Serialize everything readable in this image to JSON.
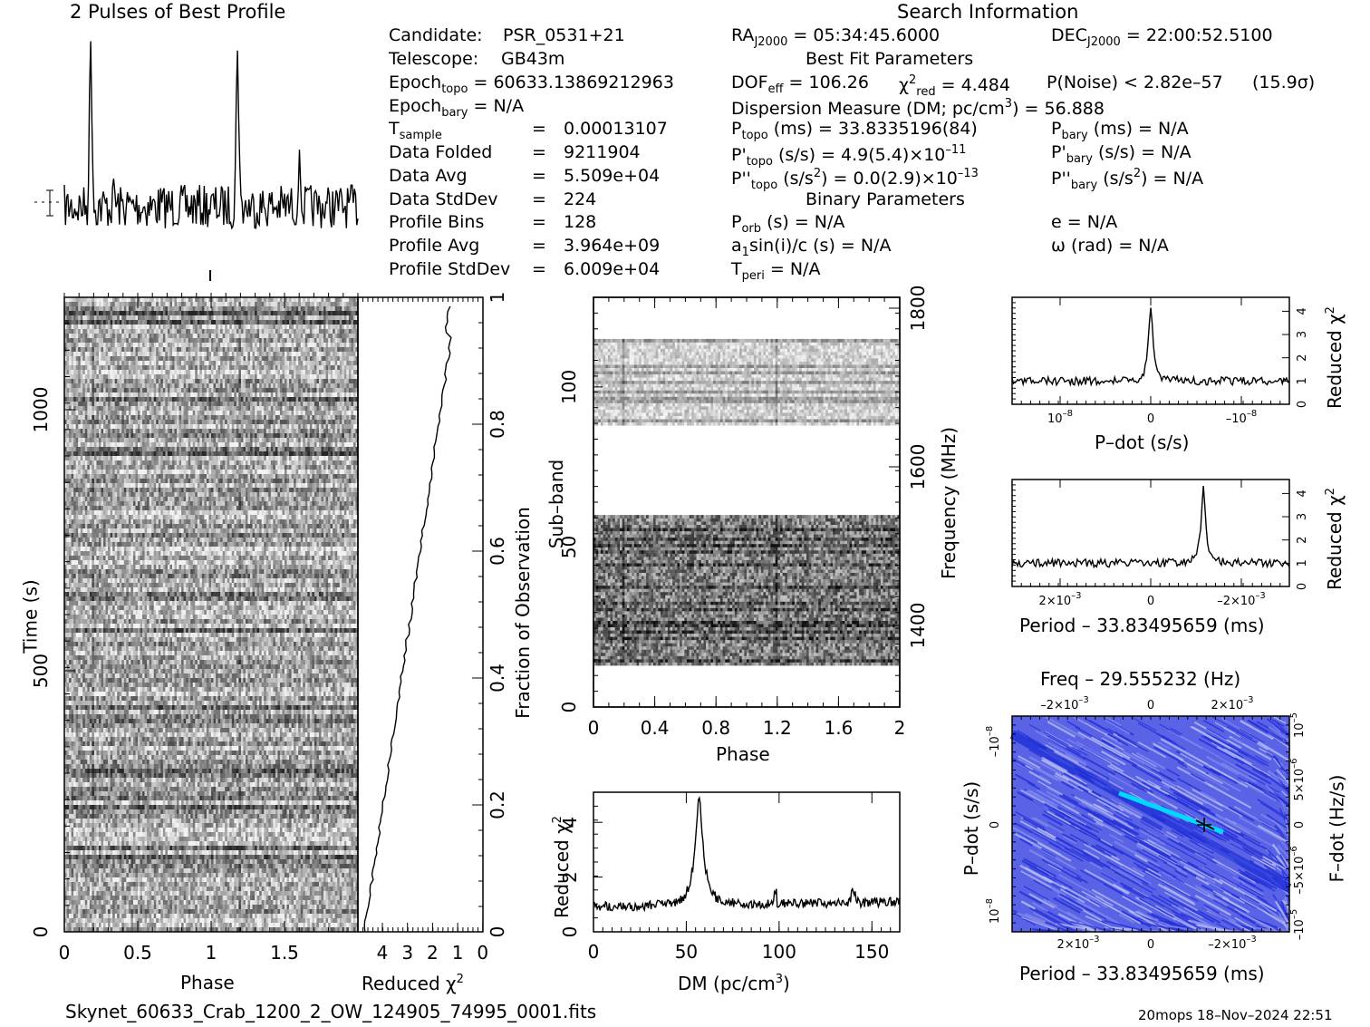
{
  "header": {
    "profile_title": "2 Pulses of Best Profile",
    "search_title": "Search Information",
    "footer_file": "Skynet_60633_Crab_1200_2_OW_124905_74995_0001.fits",
    "footer_stamp": "20mops 18–Nov–2024 22:51"
  },
  "info_left": [
    {
      "label": "Candidate:",
      "value": "PSR_0531+21"
    },
    {
      "label": "Telescope:",
      "value": "GB43m"
    },
    {
      "label": "Epoch",
      "sub": "topo",
      "value": "= 60633.13869212963"
    },
    {
      "label": "Epoch",
      "sub": "bary",
      "value": "= N/A"
    },
    {
      "label": "T",
      "sub": "sample",
      "value": "0.00013107"
    },
    {
      "label": "Data Folded",
      "value": "9211904"
    },
    {
      "label": "Data Avg",
      "value": "5.509e+04"
    },
    {
      "label": "Data StdDev",
      "value": "224"
    },
    {
      "label": "Profile Bins",
      "value": "128"
    },
    {
      "label": "Profile Avg",
      "value": "3.964e+09"
    },
    {
      "label": "Profile StdDev",
      "value": "6.009e+04"
    }
  ],
  "info_mid": {
    "ra": "= 05:34:45.6000",
    "dec": "= 22:00:52.5100",
    "best_fit_title": "Best Fit Parameters",
    "dof": "= 106.26",
    "chi2red": "= 4.484",
    "pnoise": "P(Noise) < 2.82e–57",
    "sigma": "(15.9σ)",
    "dm": "Dispersion Measure (DM; pc/cm",
    "dm_value": ") = 56.888",
    "ptopo": "(ms) =  33.8335196(84)",
    "pbary": "(ms) = N/A",
    "pdtopo": "(s/s) =  4.9(5.4)×10",
    "pdtopo_exp": "–11",
    "pdbary": "(s/s) = N/A",
    "pddtopo": ") = 0.0(2.9)×10",
    "pddtopo_exp": "–13",
    "pddbary": ") = N/A",
    "binary_title": "Binary Parameters",
    "porb": "(s) = N/A",
    "e": "e = N/A",
    "a1": "a",
    "a1_rest": "sin(i)/c (s) = N/A",
    "omega": "ω (rad) = N/A",
    "tperi": "= N/A"
  },
  "axes": {
    "phase": "Phase",
    "time": "Time (s)",
    "reduced_chi2": "Reduced χ",
    "fraction": "Fraction of Observation",
    "subband": "Sub–band",
    "frequency": "Frequency (MHz)",
    "dm": "DM (pc/cm",
    "pdot": "P–dot (s/s)",
    "period": "Period – 33.83495659 (ms)",
    "freq_title": "Freq – 29.555232 (Hz)",
    "fdot": "F–dot (Hz/s)"
  },
  "chart_data": [
    {
      "type": "line",
      "name": "profile",
      "xlim": [
        0,
        2
      ],
      "peaks_phase": [
        0.18,
        1.18
      ],
      "baseline": 0,
      "peak_height": 1
    },
    {
      "type": "heatmap",
      "name": "time-phase",
      "xlim": [
        0,
        2
      ],
      "ylim": [
        0,
        1200
      ],
      "xticks": [
        "0",
        "0.5",
        "1",
        "1.5"
      ],
      "yticks": [
        "0",
        "500",
        "1000"
      ],
      "right_ticks": [
        "0",
        "0.2",
        "0.4",
        "0.6",
        "0.8",
        "1"
      ]
    },
    {
      "type": "line",
      "name": "chi2-vs-time",
      "xlim": [
        4.5,
        0
      ],
      "xticks": [
        "4",
        "3",
        "2",
        "1",
        "0"
      ]
    },
    {
      "type": "heatmap",
      "name": "subband-phase",
      "xlim": [
        0,
        2
      ],
      "ylim": [
        0,
        128
      ],
      "xticks": [
        "0",
        "0.4",
        "0.8",
        "1.2",
        "1.6",
        "2"
      ],
      "yticks": [
        "0",
        "50",
        "100"
      ],
      "freq_ticks": [
        "1400",
        "1600",
        "1800"
      ],
      "bands": [
        [
          13,
          60
        ],
        [
          88,
          115
        ]
      ]
    },
    {
      "type": "line",
      "name": "chi2-vs-dm",
      "xlim": [
        0,
        165
      ],
      "ylim": [
        0,
        5.1
      ],
      "xticks": [
        "0",
        "50",
        "100",
        "150"
      ],
      "yticks": [
        "0",
        "2",
        "4"
      ],
      "peak_dm": 56.888,
      "peak_chi2": 4.6
    },
    {
      "type": "line",
      "name": "chi2-vs-pdot",
      "ylim": [
        0,
        4.6
      ],
      "yticks": [
        "0",
        "1",
        "2",
        "3",
        "4"
      ],
      "xticks": [
        "10",
        "0",
        "–10"
      ],
      "xtick_exp": [
        "–8",
        "",
        "–8"
      ]
    },
    {
      "type": "line",
      "name": "chi2-vs-period",
      "ylim": [
        0,
        4.6
      ],
      "yticks": [
        "0",
        "1",
        "2",
        "3",
        "4"
      ],
      "xticks": [
        "2×10",
        "0",
        "–2×10"
      ],
      "xtick_exp": [
        "–3",
        "",
        "–3"
      ]
    },
    {
      "type": "heatmap",
      "name": "period-pdot",
      "colors": [
        "#1a2bd6",
        "#5a63e6",
        "#b7bdf3",
        "#00d9ff",
        "#000000"
      ],
      "top_ticks": [
        "–2×10",
        "0",
        "2×10"
      ],
      "bottom_ticks": [
        "2×10",
        "0",
        "–2×10"
      ],
      "left_ticks": [
        "–10",
        "0",
        "10"
      ],
      "right_ticks": [
        "10",
        "5×10",
        "0",
        "–5×10",
        "–10"
      ]
    }
  ]
}
